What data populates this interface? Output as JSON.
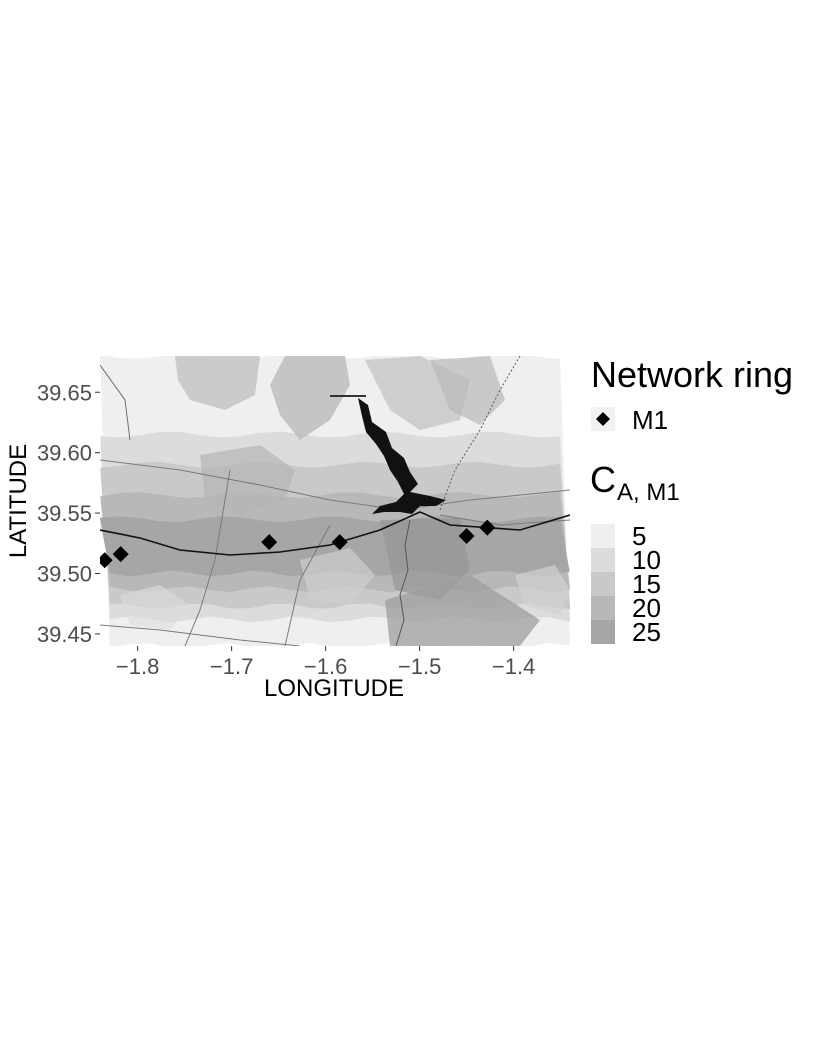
{
  "map": {
    "x_axis": {
      "title": "LONGITUDE",
      "ticks": [
        {
          "value": -1.8,
          "label": "−1.8"
        },
        {
          "value": -1.7,
          "label": "−1.7"
        },
        {
          "value": -1.6,
          "label": "−1.6"
        },
        {
          "value": -1.5,
          "label": "−1.5"
        },
        {
          "value": -1.4,
          "label": "−1.4"
        }
      ],
      "range": [
        -1.84,
        -1.34
      ]
    },
    "y_axis": {
      "title": "LATITUDE",
      "ticks": [
        {
          "value": 39.45,
          "label": "39.45"
        },
        {
          "value": 39.5,
          "label": "39.50"
        },
        {
          "value": 39.55,
          "label": "39.55"
        },
        {
          "value": 39.6,
          "label": "39.60"
        },
        {
          "value": 39.65,
          "label": "39.65"
        }
      ],
      "range": [
        39.44,
        39.68
      ]
    },
    "stations": [
      {
        "lon": -1.835,
        "lat": 39.511
      },
      {
        "lon": -1.818,
        "lat": 39.516
      },
      {
        "lon": -1.66,
        "lat": 39.526
      },
      {
        "lon": -1.585,
        "lat": 39.526
      },
      {
        "lon": -1.45,
        "lat": 39.531
      },
      {
        "lon": -1.428,
        "lat": 39.538
      }
    ],
    "coverage_bands": [
      {
        "level": 5,
        "lat_from": 39.44,
        "lat_to": 39.68
      },
      {
        "level": 10,
        "lat_from": 39.462,
        "lat_to": 39.615
      },
      {
        "level": 15,
        "lat_from": 39.473,
        "lat_to": 39.59
      },
      {
        "level": 20,
        "lat_from": 39.487,
        "lat_to": 39.565
      },
      {
        "level": 25,
        "lat_from": 39.5,
        "lat_to": 39.545
      }
    ]
  },
  "legend": {
    "network_title": "Network ring",
    "network_items": [
      {
        "label": "M1",
        "icon": "diamond-icon"
      }
    ],
    "scale_title_main": "C",
    "scale_title_sub": "A, M1",
    "scale_items": [
      {
        "label": "5",
        "color": "#efefef"
      },
      {
        "label": "10",
        "color": "#dcdcdc"
      },
      {
        "label": "15",
        "color": "#c9c9c9"
      },
      {
        "label": "20",
        "color": "#b8b8b8"
      },
      {
        "label": "25",
        "color": "#a6a6a6"
      }
    ]
  }
}
